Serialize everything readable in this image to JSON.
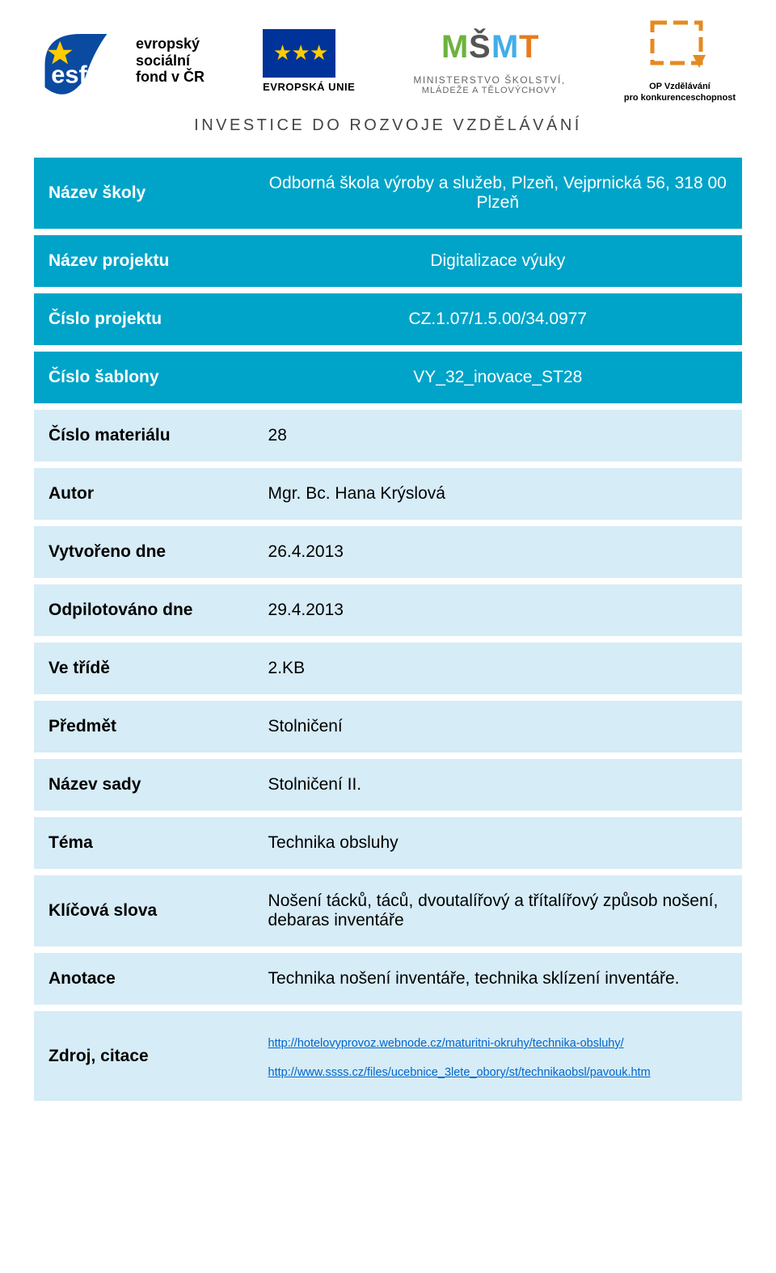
{
  "header": {
    "esf_lines": [
      "evropský",
      "sociální",
      "fond v ČR"
    ],
    "eu_label": "EVROPSKÁ UNIE",
    "msmt_logo": "MŠMT",
    "msmt_line1": "MINISTERSTVO ŠKOLSTVÍ,",
    "msmt_line2": "MLÁDEŽE A TĚLOVÝCHOVY",
    "op_line1": "OP Vzdělávání",
    "op_line2": "pro konkurenceschopnost",
    "investice": "INVESTICE DO ROZVOJE VZDĚLÁVÁNÍ"
  },
  "colors": {
    "header_bg": "#00a4c8",
    "light_bg": "#d6ecf7",
    "header_text": "#ffffff",
    "body_text": "#000000",
    "link": "#0066cc",
    "eu_blue": "#003399",
    "eu_gold": "#ffcc00",
    "op_orange": "#e58a1f",
    "esf_blue": "#0a4aa0"
  },
  "rows": [
    {
      "style": "header",
      "label": "Název školy",
      "value": "Odborná škola výroby a služeb, Plzeň, Vejprnická 56, 318 00 Plzeň",
      "center": true
    },
    {
      "style": "header",
      "label": "Název projektu",
      "value": "Digitalizace výuky",
      "center": true
    },
    {
      "style": "header",
      "label": "Číslo projektu",
      "value": "CZ.1.07/1.5.00/34.0977",
      "center": true
    },
    {
      "style": "header",
      "label": "Číslo šablony",
      "value": "VY_32_inovace_ST28",
      "center": true
    },
    {
      "style": "light",
      "label": "Číslo materiálu",
      "value": "28"
    },
    {
      "style": "light",
      "label": "Autor",
      "value": "Mgr. Bc. Hana Krýslová"
    },
    {
      "style": "light",
      "label": "Vytvořeno dne",
      "value": "26.4.2013"
    },
    {
      "style": "light",
      "label": "Odpilotováno dne",
      "value": "29.4.2013"
    },
    {
      "style": "light",
      "label": "Ve třídě",
      "value": "2.KB"
    },
    {
      "style": "light",
      "label": "Předmět",
      "value": "Stolničení"
    },
    {
      "style": "light",
      "label": "Název sady",
      "value": "Stolničení II."
    },
    {
      "style": "light",
      "label": "Téma",
      "value": "Technika obsluhy"
    },
    {
      "style": "light",
      "label": "Klíčová slova",
      "value": "Nošení tácků, táců, dvoutalířový a třítalířový způsob nošení, debaras inventáře"
    },
    {
      "style": "light",
      "label": "Anotace",
      "value": "Technika nošení inventáře, technika sklízení inventáře."
    }
  ],
  "source_row": {
    "label": "Zdroj, citace",
    "links": [
      "http://hotelovyprovoz.webnode.cz/maturitni-okruhy/technika-obsluhy/",
      "http://www.ssss.cz/files/ucebnice_3lete_obory/st/technikaobsl/pavouk.htm"
    ]
  }
}
